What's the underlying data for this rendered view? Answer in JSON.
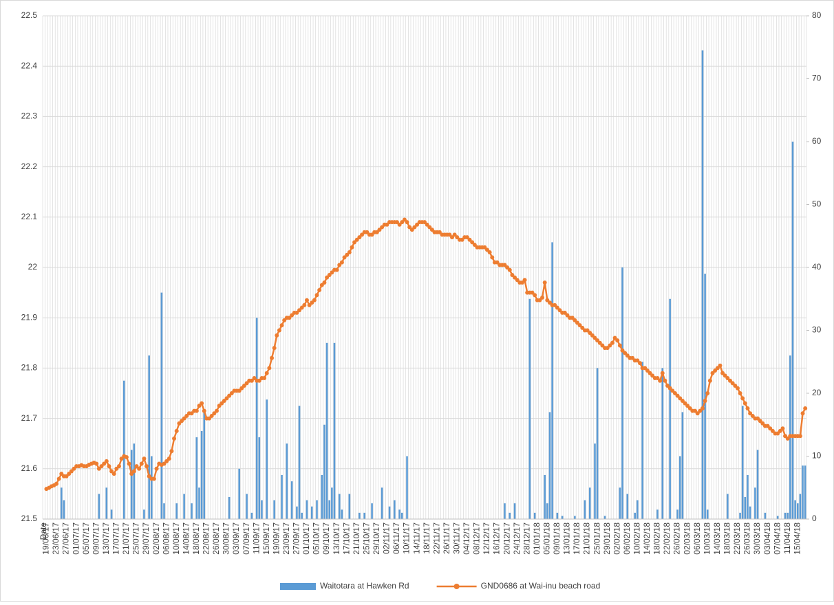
{
  "chart_data": {
    "type": "combo",
    "categories": [
      "Date",
      "19/06/17",
      null,
      null,
      null,
      "23/06/17",
      null,
      null,
      null,
      "27/06/17",
      null,
      null,
      null,
      "01/07/17",
      null,
      null,
      null,
      "05/07/17",
      null,
      null,
      null,
      "09/07/17",
      null,
      null,
      null,
      "13/07/17",
      null,
      null,
      null,
      "17/07/17",
      null,
      null,
      null,
      "21/07/17",
      null,
      null,
      null,
      "25/07/17",
      null,
      null,
      null,
      "29/07/17",
      null,
      null,
      null,
      "02/08/17",
      null,
      null,
      null,
      "06/08/17",
      null,
      null,
      null,
      "10/08/17",
      null,
      null,
      null,
      "14/08/17",
      null,
      null,
      null,
      "18/08/17",
      null,
      null,
      null,
      "22/08/17",
      null,
      null,
      null,
      "26/08/17",
      null,
      null,
      null,
      "30/08/17",
      null,
      null,
      null,
      "03/09/17",
      null,
      null,
      null,
      "07/09/17",
      null,
      null,
      null,
      "11/09/17",
      null,
      null,
      null,
      "15/09/17",
      null,
      null,
      null,
      "19/09/17",
      null,
      null,
      null,
      "23/09/17",
      null,
      null,
      null,
      "27/09/17",
      null,
      null,
      null,
      "01/10/17",
      null,
      null,
      null,
      "05/10/17",
      null,
      null,
      null,
      "09/10/17",
      null,
      null,
      null,
      "13/10/17",
      null,
      null,
      null,
      "17/10/17",
      null,
      null,
      null,
      "21/10/17",
      null,
      null,
      null,
      "25/10/17",
      null,
      null,
      null,
      "29/10/17",
      null,
      null,
      null,
      "02/11/17",
      null,
      null,
      null,
      "06/11/17",
      null,
      null,
      null,
      "10/11/17",
      null,
      null,
      null,
      "14/11/17",
      null,
      null,
      null,
      "18/11/17",
      null,
      null,
      null,
      "22/11/17",
      null,
      null,
      null,
      "26/11/17",
      null,
      null,
      null,
      "30/11/17",
      null,
      null,
      null,
      "04/12/17",
      null,
      null,
      null,
      "08/12/17",
      null,
      null,
      null,
      "12/12/17",
      null,
      null,
      null,
      "16/12/17",
      null,
      null,
      null,
      "20/12/17",
      null,
      null,
      null,
      "24/12/17",
      null,
      null,
      null,
      "28/12/17",
      null,
      null,
      null,
      "01/01/18",
      null,
      null,
      null,
      "05/01/18",
      null,
      null,
      null,
      "09/01/18",
      null,
      null,
      null,
      "13/01/18",
      null,
      null,
      null,
      "17/01/18",
      null,
      null,
      null,
      "21/01/18",
      null,
      null,
      null,
      "25/01/18",
      null,
      null,
      null,
      "29/01/18",
      null,
      null,
      null,
      "02/02/18",
      null,
      null,
      null,
      "06/02/18",
      null,
      null,
      null,
      "10/02/18",
      null,
      null,
      null,
      "14/02/18",
      null,
      null,
      null,
      "18/02/18",
      null,
      null,
      null,
      "22/02/18",
      null,
      null,
      null,
      "26/02/18",
      null,
      null,
      null,
      "02/03/18",
      null,
      null,
      null,
      "06/03/18",
      null,
      null,
      null,
      "10/03/18",
      null,
      null,
      null,
      "14/03/18",
      null,
      null,
      null,
      "18/03/18",
      null,
      null,
      null,
      "22/03/18",
      null,
      null,
      null,
      "26/03/18",
      null,
      null,
      null,
      "30/03/18",
      null,
      null,
      null,
      "03/04/18",
      null,
      null,
      null,
      "07/04/18",
      null,
      null,
      null,
      "11/04/18",
      null,
      null,
      null,
      "15/04/18",
      null,
      null,
      null
    ],
    "series": [
      {
        "name": "Waitotara at Hawken Rd",
        "type": "bar",
        "color": "#5b9bd5",
        "axis": "y2",
        "values": [
          0,
          0,
          0,
          0,
          0,
          0,
          0,
          5,
          3,
          0,
          0,
          0,
          0,
          0,
          0,
          0,
          0,
          0,
          0,
          0,
          0,
          0,
          4,
          0,
          0,
          5,
          0,
          1.5,
          0,
          0,
          0,
          0,
          22,
          0,
          0,
          11,
          12,
          0,
          0,
          0,
          1.5,
          0,
          26,
          10,
          0,
          0,
          0,
          36,
          2.5,
          0,
          0,
          0,
          0,
          2.5,
          0,
          0,
          4,
          0,
          0,
          2.5,
          0,
          13,
          5,
          14,
          17,
          0,
          0,
          0,
          0,
          0,
          0,
          0,
          0,
          0,
          3.5,
          0,
          0,
          0,
          8,
          0,
          0,
          4,
          0,
          1,
          0,
          32,
          13,
          3,
          0,
          19,
          0,
          0,
          3,
          0,
          0,
          7,
          0,
          12,
          0,
          6,
          0,
          2,
          18,
          1,
          0,
          3,
          0,
          2,
          0,
          3,
          0,
          7,
          15,
          28,
          3,
          5,
          28,
          0,
          4,
          1.5,
          0,
          0,
          4,
          0,
          0,
          0,
          1,
          0,
          1,
          0,
          0,
          2.5,
          0,
          0,
          0,
          5,
          0,
          0,
          2,
          0,
          3,
          0,
          1.5,
          1,
          0,
          10,
          0,
          0,
          0,
          0,
          0,
          0,
          0,
          0,
          0,
          0,
          0,
          0,
          0,
          0,
          0,
          0,
          0,
          0,
          0,
          0,
          0,
          0,
          0,
          0,
          0,
          0,
          0,
          0,
          0,
          0,
          0,
          0,
          0,
          0,
          0,
          0,
          0,
          0,
          2.5,
          0,
          1,
          0,
          2.5,
          0,
          0,
          0,
          0,
          0,
          35,
          0,
          1,
          0,
          0,
          0,
          7,
          2.5,
          17,
          44,
          0,
          1,
          0,
          0.5,
          0,
          0,
          0,
          0,
          0.5,
          0,
          0,
          0,
          3,
          0,
          5,
          0,
          12,
          24,
          0,
          0,
          0.5,
          0,
          0,
          0,
          0,
          0,
          5,
          40,
          0,
          4,
          0,
          0,
          1,
          3,
          0,
          25,
          0,
          0,
          0,
          0,
          0,
          1.5,
          0,
          24,
          0,
          0,
          35,
          0,
          0,
          1.5,
          10,
          17,
          0,
          0,
          0,
          0,
          0,
          0,
          0,
          74.5,
          39,
          1.5,
          0,
          0,
          0,
          0,
          0,
          0,
          0,
          4,
          0,
          0,
          0,
          0,
          1,
          18,
          3.5,
          7,
          2,
          0,
          5,
          11,
          0,
          0,
          1,
          0,
          0,
          0,
          0,
          0.5,
          0,
          0,
          1,
          1,
          26,
          60,
          3,
          2.5,
          4,
          8.5,
          8.5
        ]
      },
      {
        "name": "GND0686 at Wai-inu beach road",
        "type": "line",
        "color": "#ed7d31",
        "values": [
          null,
          21.56,
          21.562,
          21.565,
          21.567,
          21.57,
          21.58,
          21.59,
          21.585,
          21.585,
          21.59,
          21.595,
          21.6,
          21.605,
          21.605,
          21.607,
          21.605,
          21.605,
          21.608,
          21.61,
          21.612,
          21.61,
          21.6,
          21.605,
          21.61,
          21.615,
          21.605,
          21.595,
          21.59,
          21.6,
          21.605,
          21.62,
          21.625,
          21.623,
          21.61,
          21.59,
          21.595,
          21.605,
          21.6,
          21.61,
          21.62,
          21.605,
          21.585,
          21.58,
          21.58,
          21.6,
          21.61,
          21.608,
          21.61,
          21.615,
          21.62,
          21.635,
          21.66,
          21.675,
          21.69,
          21.695,
          21.7,
          21.705,
          21.71,
          21.71,
          21.715,
          21.715,
          21.725,
          21.73,
          21.715,
          21.7,
          21.7,
          21.705,
          21.71,
          21.715,
          21.725,
          21.73,
          21.735,
          21.74,
          21.745,
          21.75,
          21.755,
          21.755,
          21.755,
          21.76,
          21.765,
          21.77,
          21.775,
          21.775,
          21.78,
          21.775,
          21.775,
          21.78,
          21.78,
          21.79,
          21.8,
          21.82,
          21.84,
          21.865,
          21.875,
          21.885,
          21.895,
          21.9,
          21.9,
          21.905,
          21.91,
          21.91,
          21.915,
          21.92,
          21.925,
          21.935,
          21.925,
          21.93,
          21.935,
          21.945,
          21.955,
          21.965,
          21.97,
          21.98,
          21.985,
          21.99,
          21.995,
          21.995,
          22.005,
          22.01,
          22.02,
          22.025,
          22.03,
          22.04,
          22.05,
          22.055,
          22.06,
          22.065,
          22.07,
          22.07,
          22.065,
          22.065,
          22.07,
          22.07,
          22.075,
          22.08,
          22.085,
          22.085,
          22.09,
          22.09,
          22.09,
          22.09,
          22.085,
          22.09,
          22.095,
          22.09,
          22.08,
          22.075,
          22.08,
          22.085,
          22.09,
          22.09,
          22.09,
          22.085,
          22.08,
          22.075,
          22.07,
          22.07,
          22.07,
          22.065,
          22.065,
          22.065,
          22.065,
          22.06,
          22.065,
          22.06,
          22.055,
          22.055,
          22.06,
          22.06,
          22.055,
          22.05,
          22.045,
          22.04,
          22.04,
          22.04,
          22.04,
          22.035,
          22.03,
          22.02,
          22.01,
          22.01,
          22.005,
          22.005,
          22.005,
          22.0,
          21.995,
          21.985,
          21.98,
          21.975,
          21.97,
          21.97,
          21.975,
          21.95,
          21.95,
          21.95,
          21.945,
          21.935,
          21.935,
          21.94,
          21.97,
          21.935,
          21.93,
          21.925,
          21.925,
          21.92,
          21.915,
          21.91,
          21.91,
          21.905,
          21.9,
          21.9,
          21.895,
          21.89,
          21.885,
          21.88,
          21.875,
          21.875,
          21.87,
          21.865,
          21.86,
          21.855,
          21.85,
          21.845,
          21.84,
          21.84,
          21.845,
          21.85,
          21.86,
          21.855,
          21.845,
          21.835,
          21.83,
          21.825,
          21.82,
          21.82,
          21.815,
          21.815,
          21.81,
          21.8,
          21.8,
          21.795,
          21.79,
          21.785,
          21.78,
          21.78,
          21.775,
          21.79,
          21.775,
          21.765,
          21.76,
          21.755,
          21.75,
          21.745,
          21.74,
          21.735,
          21.73,
          21.725,
          21.72,
          21.715,
          21.715,
          21.71,
          21.715,
          21.72,
          21.735,
          21.75,
          21.775,
          21.79,
          21.795,
          21.8,
          21.805,
          21.79,
          21.785,
          21.78,
          21.775,
          21.77,
          21.765,
          21.76,
          21.75,
          21.74,
          21.73,
          21.72,
          21.71,
          21.705,
          21.7,
          21.7,
          21.695,
          21.69,
          21.685,
          21.685,
          21.68,
          21.675,
          21.67,
          21.67,
          21.675,
          21.68,
          21.665,
          21.66,
          21.665,
          21.665,
          21.665,
          21.665,
          21.665,
          21.71,
          21.72
        ]
      }
    ],
    "ylim": [
      21.5,
      22.5
    ],
    "yticks": [
      21.5,
      21.6,
      21.7,
      21.8,
      21.9,
      22,
      22.1,
      22.2,
      22.3,
      22.4,
      22.5
    ],
    "y2lim": [
      0,
      80
    ],
    "y2ticks": [
      0,
      10,
      20,
      30,
      40,
      50,
      60,
      70,
      80
    ],
    "grid": true,
    "legend": "bottom"
  }
}
